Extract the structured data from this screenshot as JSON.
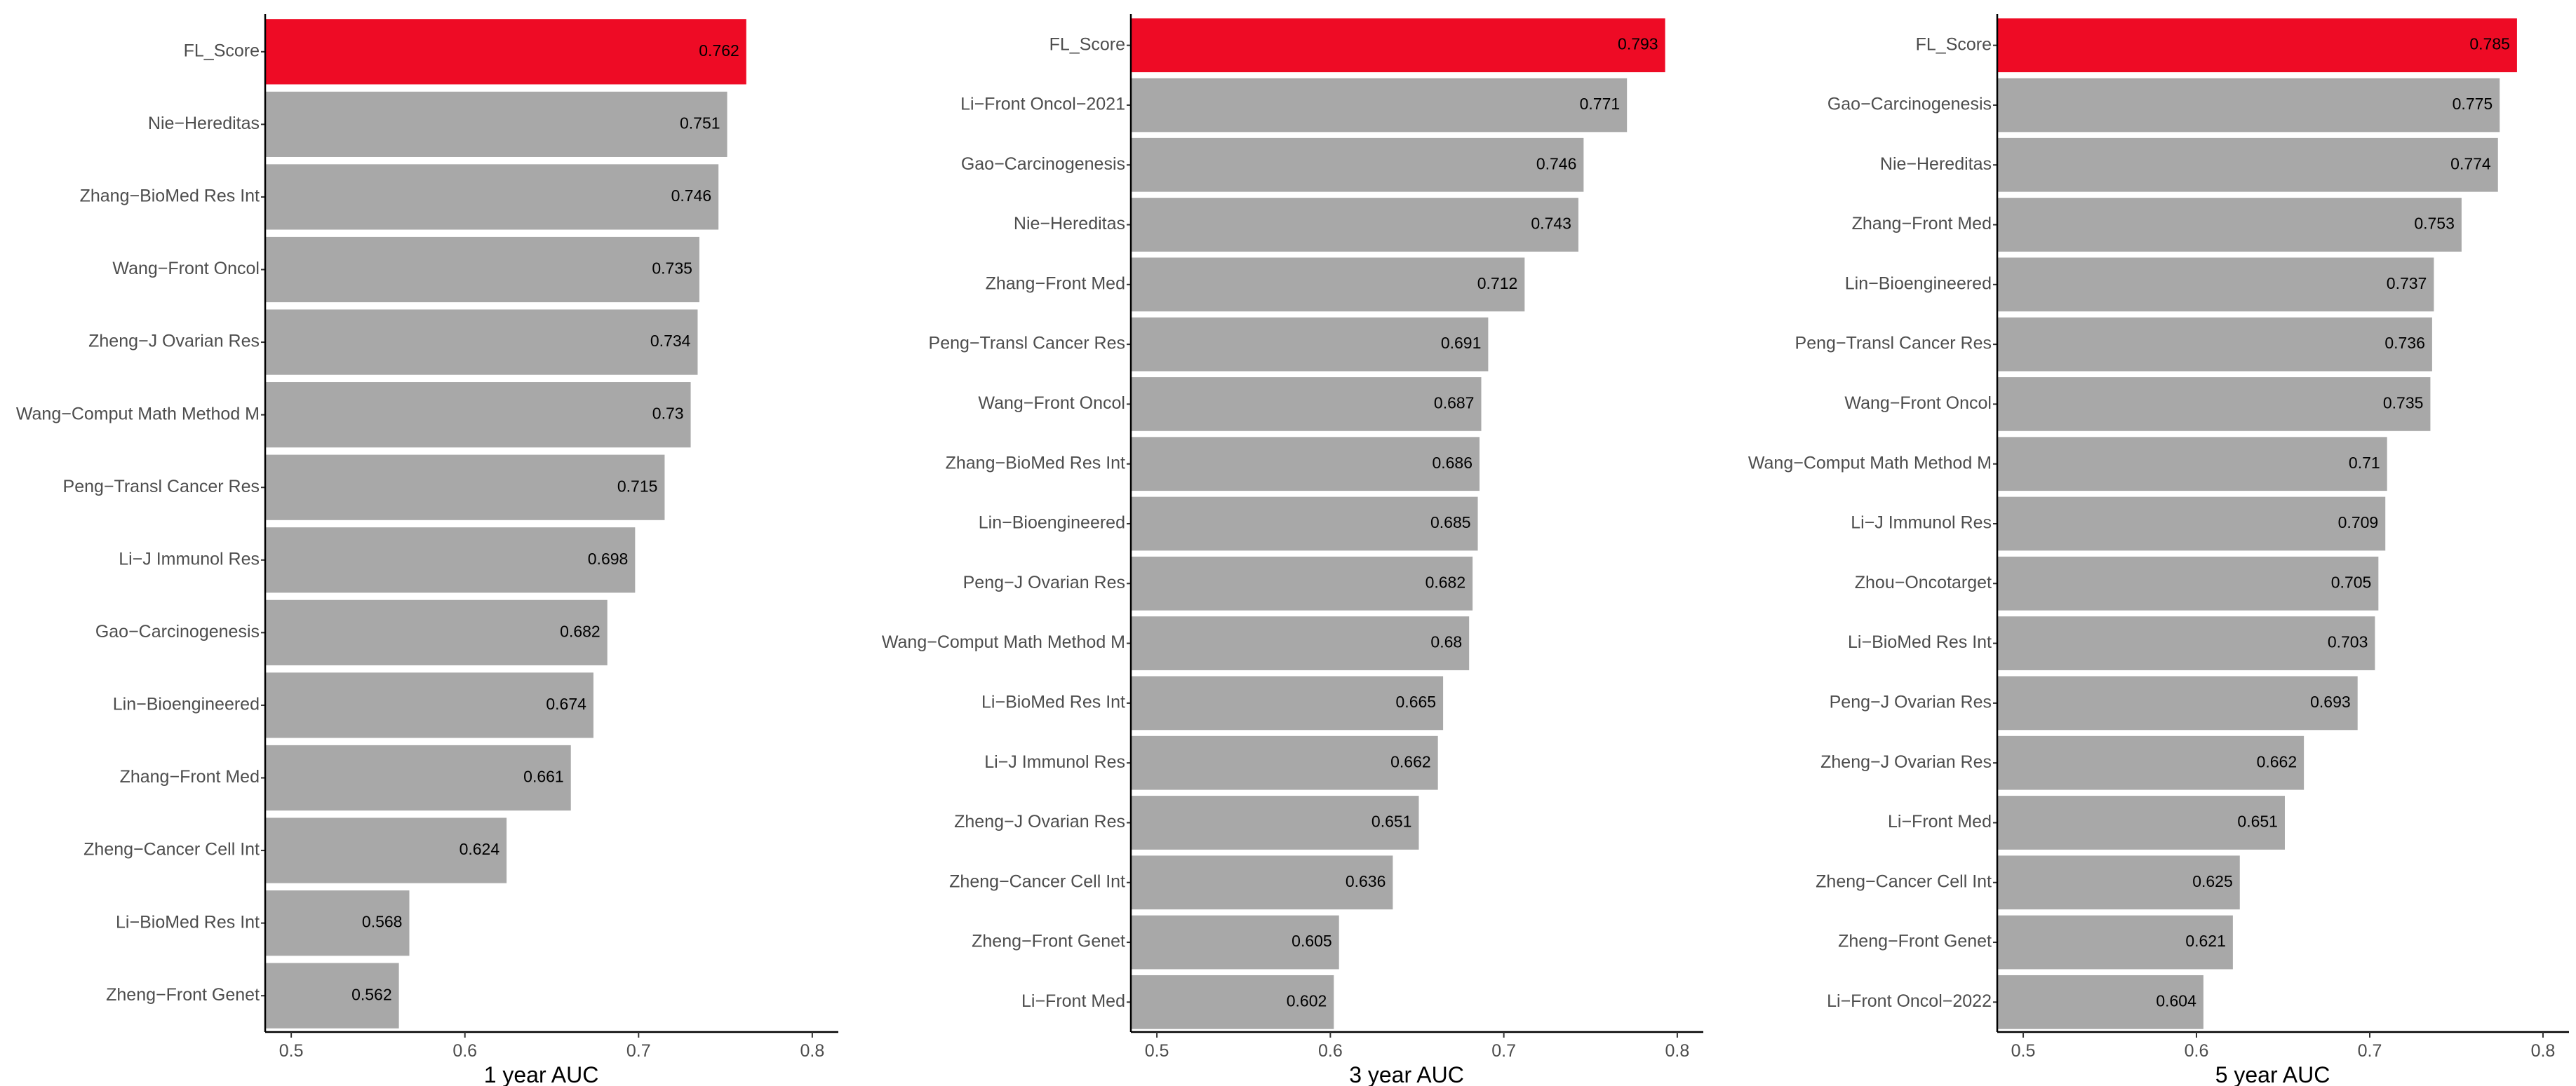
{
  "colors": {
    "highlight": "#ee0b25",
    "bar": "#a8a8a8",
    "axis": "#000000",
    "tick_text": "#4d4d4d"
  },
  "chart_data": [
    {
      "type": "bar",
      "orientation": "horizontal",
      "xlabel": "1 year AUC",
      "xlim": [
        0.485,
        0.815
      ],
      "xticks": [
        "0.5",
        "0.6",
        "0.7",
        "0.8"
      ],
      "grid": false,
      "highlight": "FL_Score",
      "categories": [
        "FL_Score",
        "Nie−Hereditas",
        "Zhang−BioMed Res Int",
        "Wang−Front Oncol",
        "Zheng−J Ovarian Res",
        "Wang−Comput Math Method M",
        "Peng−Transl Cancer Res",
        "Li−J Immunol Res",
        "Gao−Carcinogenesis",
        "Lin−Bioengineered",
        "Zhang−Front Med",
        "Zheng−Cancer Cell Int",
        "Li−BioMed Res Int",
        "Zheng−Front Genet"
      ],
      "values": [
        0.762,
        0.751,
        0.746,
        0.735,
        0.734,
        0.73,
        0.715,
        0.698,
        0.682,
        0.674,
        0.661,
        0.624,
        0.568,
        0.562
      ],
      "value_labels": [
        "0.762",
        "0.751",
        "0.746",
        "0.735",
        "0.734",
        "0.73",
        "0.715",
        "0.698",
        "0.682",
        "0.674",
        "0.661",
        "0.624",
        "0.568",
        "0.562"
      ]
    },
    {
      "type": "bar",
      "orientation": "horizontal",
      "xlabel": "3 year AUC",
      "xlim": [
        0.485,
        0.815
      ],
      "xticks": [
        "0.5",
        "0.6",
        "0.7",
        "0.8"
      ],
      "grid": false,
      "highlight": "FL_Score",
      "categories": [
        "FL_Score",
        "Li−Front Oncol−2021",
        "Gao−Carcinogenesis",
        "Nie−Hereditas",
        "Zhang−Front Med",
        "Peng−Transl Cancer Res",
        "Wang−Front Oncol",
        "Zhang−BioMed Res Int",
        "Lin−Bioengineered",
        "Peng−J Ovarian Res",
        "Wang−Comput Math Method M",
        "Li−BioMed Res Int",
        "Li−J Immunol Res",
        "Zheng−J Ovarian Res",
        "Zheng−Cancer Cell Int",
        "Zheng−Front Genet",
        "Li−Front Med"
      ],
      "values": [
        0.793,
        0.771,
        0.746,
        0.743,
        0.712,
        0.691,
        0.687,
        0.686,
        0.685,
        0.682,
        0.68,
        0.665,
        0.662,
        0.651,
        0.636,
        0.605,
        0.602
      ],
      "value_labels": [
        "0.793",
        "0.771",
        "0.746",
        "0.743",
        "0.712",
        "0.691",
        "0.687",
        "0.686",
        "0.685",
        "0.682",
        "0.68",
        "0.665",
        "0.662",
        "0.651",
        "0.636",
        "0.605",
        "0.602"
      ]
    },
    {
      "type": "bar",
      "orientation": "horizontal",
      "xlabel": "5 year AUC",
      "xlim": [
        0.485,
        0.815
      ],
      "xticks": [
        "0.5",
        "0.6",
        "0.7",
        "0.8"
      ],
      "grid": false,
      "highlight": "FL_Score",
      "categories": [
        "FL_Score",
        "Gao−Carcinogenesis",
        "Nie−Hereditas",
        "Zhang−Front Med",
        "Lin−Bioengineered",
        "Peng−Transl Cancer Res",
        "Wang−Front Oncol",
        "Wang−Comput Math Method M",
        "Li−J Immunol Res",
        "Zhou−Oncotarget",
        "Li−BioMed Res Int",
        "Peng−J Ovarian Res",
        "Zheng−J Ovarian Res",
        "Li−Front Med",
        "Zheng−Cancer Cell Int",
        "Zheng−Front Genet",
        "Li−Front Oncol−2022"
      ],
      "values": [
        0.785,
        0.775,
        0.774,
        0.753,
        0.737,
        0.736,
        0.735,
        0.71,
        0.709,
        0.705,
        0.703,
        0.693,
        0.662,
        0.651,
        0.625,
        0.621,
        0.604
      ],
      "value_labels": [
        "0.785",
        "0.775",
        "0.774",
        "0.753",
        "0.737",
        "0.736",
        "0.735",
        "0.71",
        "0.709",
        "0.705",
        "0.703",
        "0.693",
        "0.662",
        "0.651",
        "0.625",
        "0.621",
        "0.604"
      ]
    }
  ]
}
